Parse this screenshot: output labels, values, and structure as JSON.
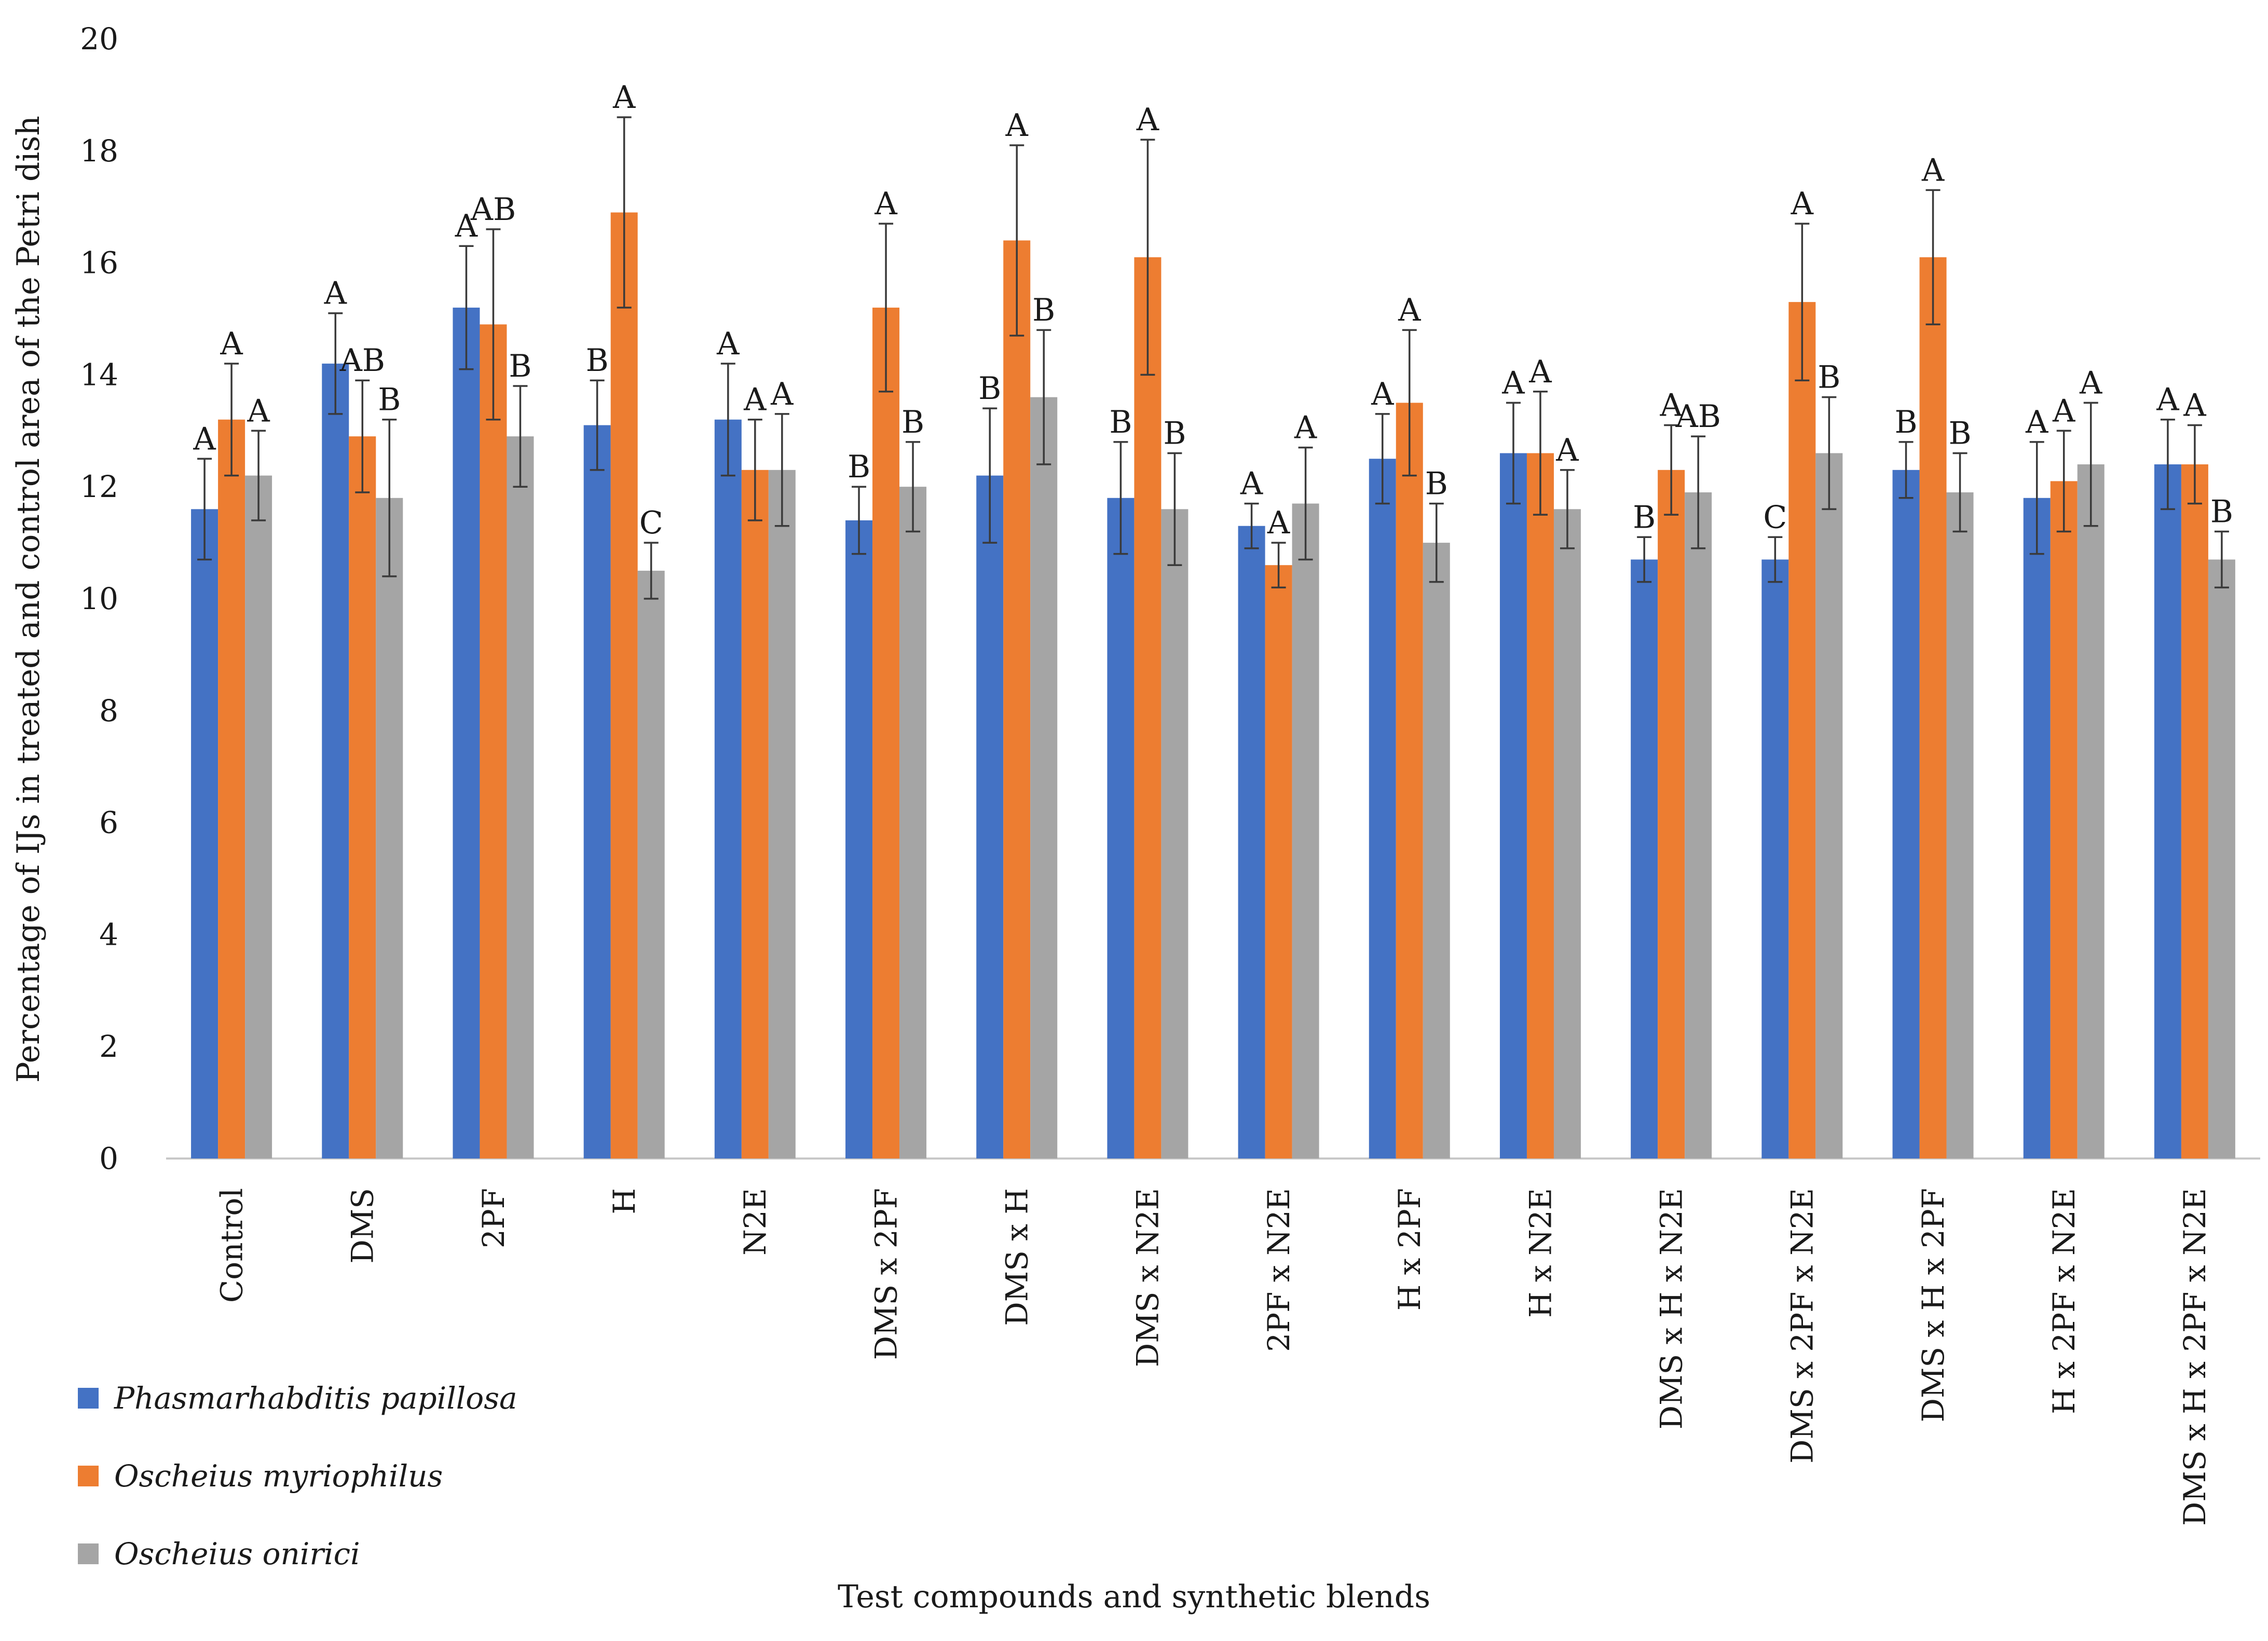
{
  "chart_data": {
    "type": "bar",
    "title": "",
    "xlabel": "Test compounds and synthetic blends",
    "ylabel": "Percentage of IJs in treated and control area of the Petri dish",
    "ylim": [
      0,
      20
    ],
    "yticks": [
      0,
      2,
      4,
      6,
      8,
      10,
      12,
      14,
      16,
      18,
      20
    ],
    "grid": false,
    "legend_position": "bottom-left",
    "categories": [
      "Control",
      "DMS",
      "2PF",
      "H",
      "N2E",
      "DMS x 2PF",
      "DMS x H",
      "DMS x N2E",
      "2PF x N2E",
      "H x 2PF",
      "H x N2E",
      "DMS x H x N2E",
      "DMS x 2PF x N2E",
      "DMS x H x 2PF",
      "H x 2PF x N2E",
      "DMS x H x 2PF x N2E"
    ],
    "series": [
      {
        "name": "Phasmarhabditis papillosa",
        "color": "#4472C4",
        "values": [
          11.6,
          14.2,
          15.2,
          13.1,
          13.2,
          11.4,
          12.2,
          11.8,
          11.3,
          12.5,
          12.6,
          10.7,
          10.7,
          12.3,
          11.8,
          12.4
        ],
        "errors": [
          0.9,
          0.9,
          1.1,
          0.8,
          1.0,
          0.6,
          1.2,
          1.0,
          0.4,
          0.8,
          0.9,
          0.4,
          0.4,
          0.5,
          1.0,
          0.8
        ],
        "significance": [
          "A",
          "A",
          "A",
          "B",
          "A",
          "B",
          "B",
          "B",
          "A",
          "A",
          "A",
          "B",
          "C",
          "B",
          "A",
          "A"
        ]
      },
      {
        "name": "Oscheius myriophilus",
        "color": "#ED7D31",
        "values": [
          13.2,
          12.9,
          14.9,
          16.9,
          12.3,
          15.2,
          16.4,
          16.1,
          10.6,
          13.5,
          12.6,
          12.3,
          15.3,
          16.1,
          12.1,
          12.4
        ],
        "errors": [
          1.0,
          1.0,
          1.7,
          1.7,
          0.9,
          1.5,
          1.7,
          2.1,
          0.4,
          1.3,
          1.1,
          0.8,
          1.4,
          1.2,
          0.9,
          0.7
        ],
        "significance": [
          "A",
          "AB",
          "AB",
          "A",
          "A",
          "A",
          "A",
          "A",
          "A",
          "A",
          "A",
          "A",
          "A",
          "A",
          "A",
          "A"
        ]
      },
      {
        "name": "Oscheius onirici",
        "color": "#A5A5A5",
        "values": [
          12.2,
          11.8,
          12.9,
          10.5,
          12.3,
          12.0,
          13.6,
          11.6,
          11.7,
          11.0,
          11.6,
          11.9,
          12.6,
          11.9,
          12.4,
          10.7
        ],
        "errors": [
          0.8,
          1.4,
          0.9,
          0.5,
          1.0,
          0.8,
          1.2,
          1.0,
          1.0,
          0.7,
          0.7,
          1.0,
          1.0,
          0.7,
          1.1,
          0.5
        ],
        "significance": [
          "A",
          "B",
          "B",
          "C",
          "A",
          "B",
          "B",
          "B",
          "A",
          "B",
          "A",
          "AB",
          "B",
          "B",
          "A",
          "B"
        ]
      }
    ]
  }
}
